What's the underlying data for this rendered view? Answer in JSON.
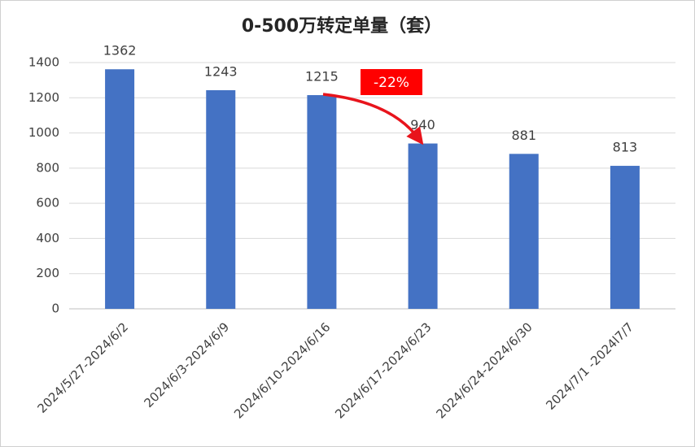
{
  "chart_data": {
    "type": "bar",
    "title": "0-500万转定单量（套）",
    "categories": [
      "2024/5/27-2024/6/2",
      "2024/6/3-2024/6/9",
      "2024/6/10-2024/6/16",
      "2024/6/17-2024/6/23",
      "2024/6/24-2024/6/30",
      "2024/7/1 -2024l7/7"
    ],
    "values": [
      1362,
      1243,
      1215,
      940,
      881,
      813
    ],
    "color": "#4472c4",
    "ylim": [
      0,
      1400
    ],
    "yticks": [
      0,
      200,
      400,
      600,
      800,
      1000,
      1200,
      1400
    ],
    "grid": true,
    "annotation": "-22%"
  }
}
